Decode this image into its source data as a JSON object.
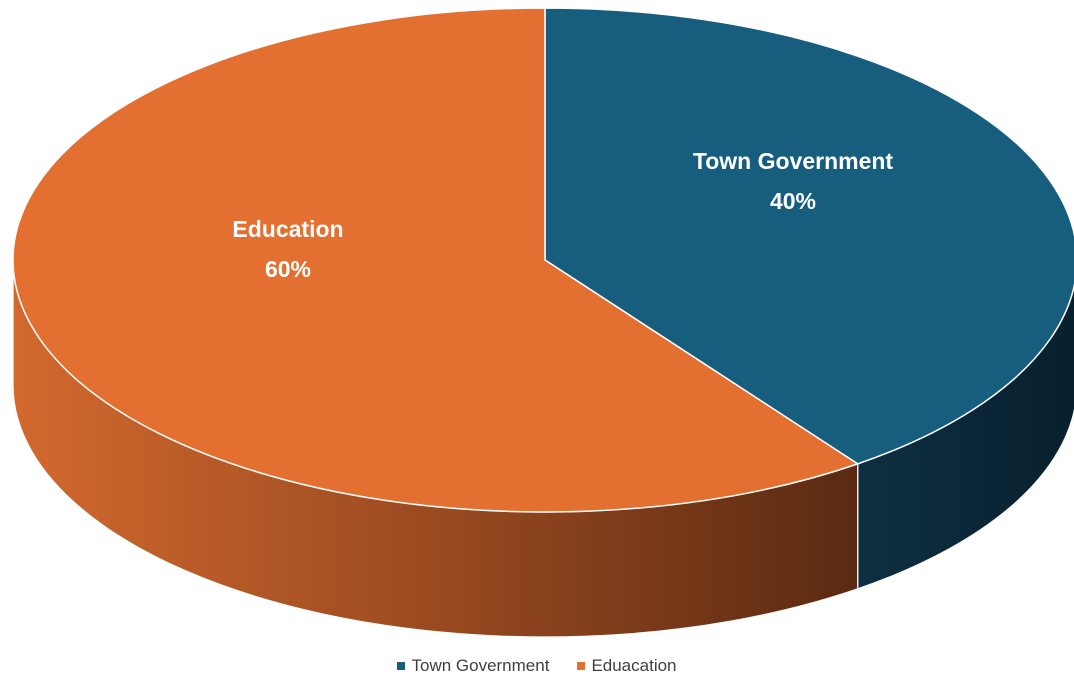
{
  "chart_data": {
    "type": "pie",
    "style": "3d",
    "categories": [
      "Town Government",
      "Education"
    ],
    "values": [
      40,
      60
    ],
    "slices": [
      {
        "name": "Town Government",
        "label": "Town Government",
        "percent_label": "40%",
        "value": 40,
        "color": "#175E7E",
        "side_color": "#0B2636"
      },
      {
        "name": "Education",
        "label": "Education",
        "percent_label": "60%",
        "value": 60,
        "color": "#E36F30",
        "side_color": "#A24E22"
      }
    ],
    "legend": {
      "placement": "bottom",
      "entries": [
        {
          "label": "Town Government",
          "color": "#175E7E"
        },
        {
          "label": "Eduacation",
          "color": "#E36F30"
        }
      ]
    }
  }
}
